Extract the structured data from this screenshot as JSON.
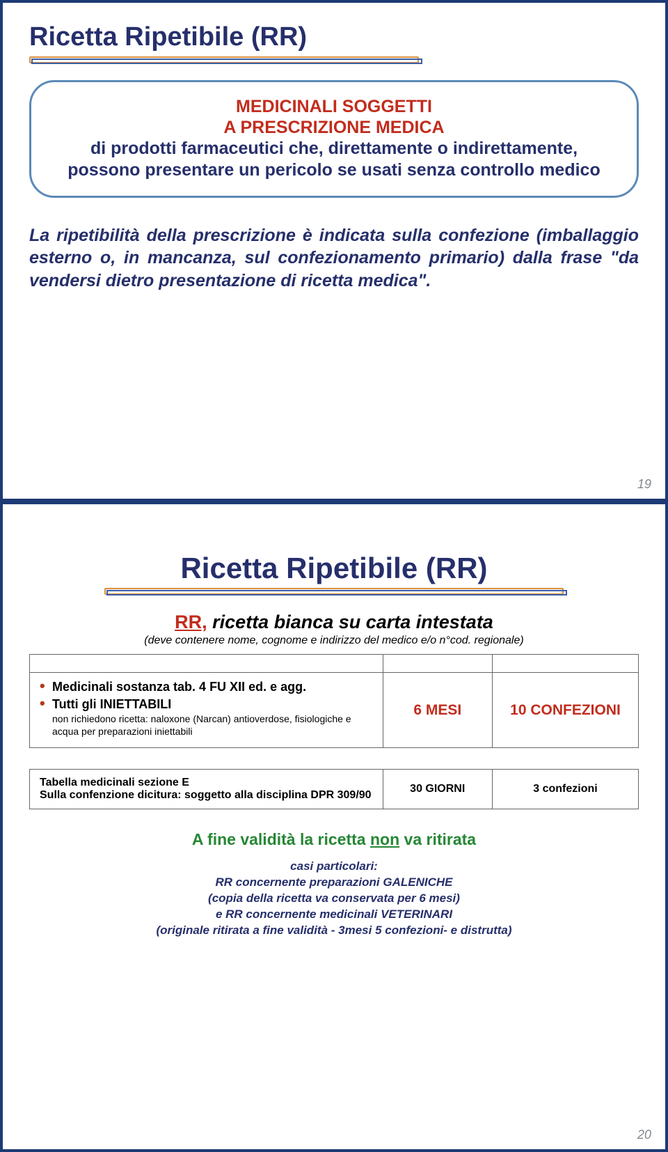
{
  "slide1": {
    "title": "Ricetta Ripetibile (RR)",
    "callout_red1": "MEDICINALI SOGGETTI",
    "callout_red2": "A PRESCRIZIONE MEDICA",
    "callout_body": "di prodotti farmaceutici che, direttamente o indirettamente, possono presentare un pericolo se usati senza controllo medico",
    "para_start": "La ripetibilità della prescrizione è indicata sulla confezione (imballaggio esterno o, in mancanza, sul confezionamento primario) dalla frase ",
    "para_quote": "\"da vendersi dietro presentazione di ricetta medica\".",
    "page": "19"
  },
  "slide2": {
    "title": "Ricetta Ripetibile (RR)",
    "rr_label": "RR,",
    "rr_rest": " ricetta bianca su carta intestata",
    "rr_sub": "(deve contenere nome, cognome e indirizzo del medico e/o n°cod. regionale)",
    "table": {
      "row1": {
        "b1": "Medicinali sostanza tab. 4 FU XII ed. e agg.",
        "b2": "Tutti gli INIETTABILI",
        "b2_sub": "non richiedono ricetta: naloxone (Narcan) antioverdose, fisiologiche e acqua per preparazioni iniettabili",
        "c2": "6 MESI",
        "c3": "10 CONFEZIONI"
      },
      "row2": {
        "c1a": "Tabella medicinali sezione E",
        "c1b": "Sulla confenzione dicitura: soggetto alla disciplina DPR 309/90",
        "c2": "30 GIORNI",
        "c3": "3 confezioni"
      }
    },
    "green_pre": "A fine validità la ricetta ",
    "green_u": "non",
    "green_post": " va ritirata",
    "foot1": "casi particolari:",
    "foot2": "RR concernente preparazioni GALENICHE",
    "foot3": "(copia della ricetta va conservata per 6 mesi)",
    "foot4": "e RR concernente medicinali VETERINARI",
    "foot5": "(originale ritirata a fine validità - 3mesi 5 confezioni- e distrutta)",
    "page": "20"
  },
  "colors": {
    "navy": "#262f6b",
    "red": "#c22c1d",
    "green": "#268734",
    "orange": "#d98f3c",
    "blue": "#3a5fa8"
  }
}
